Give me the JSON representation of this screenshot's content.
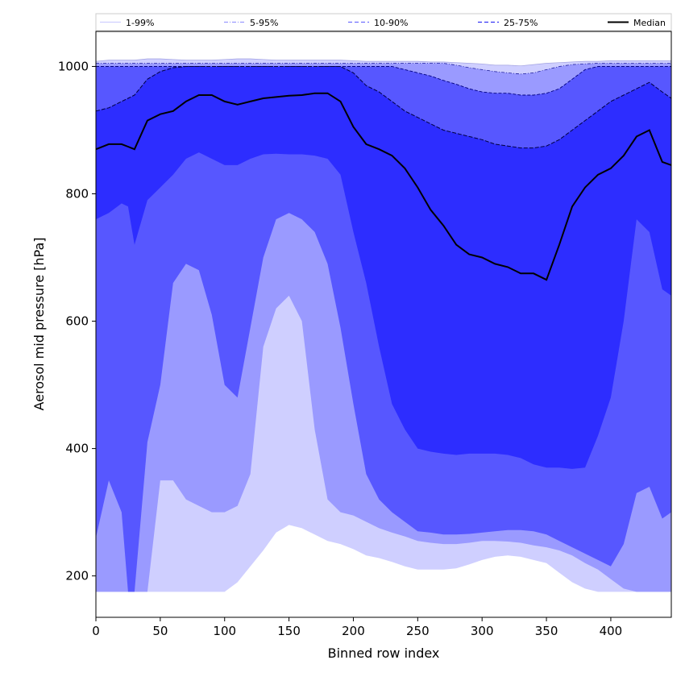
{
  "chart_data": {
    "type": "area",
    "title": "",
    "xlabel": "Binned row index",
    "ylabel": "Aerosol mid pressure [hPa]",
    "xlim": [
      0,
      447
    ],
    "ylim": [
      135,
      1055
    ],
    "xticks": [
      "0",
      "50",
      "100",
      "150",
      "200",
      "250",
      "300",
      "350",
      "400"
    ],
    "xtick_values": [
      0,
      50,
      100,
      150,
      200,
      250,
      300,
      350,
      400
    ],
    "yticks": [
      "200",
      "400",
      "600",
      "800",
      "1000"
    ],
    "ytick_values": [
      200,
      400,
      600,
      800,
      1000
    ],
    "grid": false,
    "legend_position": "top",
    "legend": [
      {
        "label": "1-99%",
        "color": "#cfcfff",
        "dash": "solid"
      },
      {
        "label": "5-95%",
        "color": "#9a9aff",
        "dash": "dashdot"
      },
      {
        "label": "10-90%",
        "color": "#6f6fff",
        "dash": "dashed"
      },
      {
        "label": "25-75%",
        "color": "#3434f5",
        "dash": "dashed"
      },
      {
        "label": "Median",
        "color": "#000000",
        "dash": "solid"
      }
    ],
    "x": [
      0,
      10,
      20,
      25,
      30,
      40,
      50,
      60,
      70,
      80,
      90,
      100,
      110,
      120,
      130,
      140,
      150,
      160,
      170,
      180,
      190,
      200,
      210,
      220,
      230,
      240,
      250,
      260,
      270,
      280,
      290,
      300,
      310,
      320,
      330,
      340,
      350,
      360,
      370,
      380,
      390,
      400,
      410,
      420,
      430,
      440,
      447
    ],
    "series": [
      {
        "name": "p1",
        "values": [
          175,
          175,
          175,
          175,
          175,
          175,
          175,
          175,
          175,
          175,
          175,
          175,
          190,
          215,
          240,
          268,
          280,
          275,
          265,
          255,
          250,
          242,
          232,
          228,
          222,
          215,
          210,
          210,
          210,
          212,
          218,
          225,
          230,
          232,
          230,
          225,
          220,
          205,
          190,
          180,
          175,
          175,
          175,
          175,
          175,
          175,
          175
        ]
      },
      {
        "name": "p5",
        "values": [
          175,
          175,
          175,
          175,
          175,
          175,
          350,
          350,
          320,
          310,
          300,
          300,
          310,
          360,
          560,
          620,
          640,
          600,
          430,
          320,
          300,
          295,
          285,
          275,
          268,
          262,
          255,
          252,
          250,
          250,
          252,
          255,
          255,
          254,
          252,
          248,
          245,
          240,
          232,
          220,
          210,
          195,
          180,
          175,
          175,
          175,
          175
        ]
      },
      {
        "name": "p10",
        "values": [
          260,
          350,
          300,
          175,
          175,
          410,
          500,
          660,
          690,
          680,
          610,
          500,
          480,
          590,
          700,
          760,
          770,
          760,
          740,
          690,
          590,
          470,
          360,
          320,
          300,
          285,
          270,
          268,
          265,
          265,
          266,
          268,
          270,
          272,
          272,
          270,
          265,
          255,
          245,
          235,
          225,
          215,
          250,
          330,
          340,
          290,
          300
        ]
      },
      {
        "name": "p25",
        "values": [
          760,
          770,
          785,
          780,
          720,
          790,
          810,
          830,
          855,
          865,
          855,
          845,
          845,
          855,
          862,
          863,
          862,
          862,
          860,
          855,
          830,
          740,
          660,
          560,
          470,
          430,
          400,
          395,
          392,
          390,
          392,
          392,
          392,
          390,
          385,
          375,
          370,
          370,
          368,
          370,
          420,
          480,
          600,
          760,
          740,
          650,
          640
        ]
      },
      {
        "name": "median",
        "values": [
          870,
          878,
          878,
          874,
          870,
          915,
          925,
          930,
          945,
          955,
          955,
          945,
          940,
          945,
          950,
          952,
          954,
          955,
          958,
          958,
          945,
          905,
          878,
          870,
          860,
          840,
          810,
          775,
          750,
          720,
          705,
          700,
          690,
          685,
          675,
          675,
          665,
          720,
          780,
          810,
          830,
          840,
          860,
          890,
          900,
          850,
          845
        ]
      },
      {
        "name": "p75",
        "values": [
          930,
          935,
          945,
          950,
          955,
          980,
          992,
          998,
          1000,
          1000,
          1000,
          1000,
          1000,
          1000,
          1000,
          1000,
          1000,
          1000,
          1000,
          1000,
          1000,
          990,
          970,
          960,
          945,
          930,
          920,
          910,
          900,
          895,
          890,
          885,
          878,
          875,
          872,
          872,
          875,
          885,
          900,
          915,
          930,
          945,
          955,
          965,
          975,
          960,
          950
        ]
      },
      {
        "name": "p90",
        "values": [
          1000,
          1000,
          1000,
          1000,
          1000,
          1000,
          1000,
          1000,
          1000,
          1000,
          1000,
          1000,
          1000,
          1000,
          1000,
          1000,
          1000,
          1000,
          1000,
          1000,
          1000,
          1000,
          1000,
          1000,
          1000,
          995,
          990,
          985,
          978,
          972,
          965,
          960,
          958,
          958,
          955,
          955,
          958,
          965,
          980,
          995,
          1000,
          1000,
          1000,
          1000,
          1000,
          1000,
          1000
        ]
      },
      {
        "name": "p95",
        "values": [
          1005,
          1005,
          1005,
          1005,
          1005,
          1005,
          1005,
          1005,
          1005,
          1005,
          1005,
          1005,
          1005,
          1005,
          1005,
          1005,
          1005,
          1005,
          1005,
          1005,
          1005,
          1005,
          1005,
          1005,
          1005,
          1005,
          1005,
          1005,
          1005,
          1002,
          998,
          995,
          992,
          990,
          988,
          990,
          995,
          1000,
          1003,
          1004,
          1005,
          1005,
          1005,
          1005,
          1005,
          1005,
          1005
        ]
      },
      {
        "name": "p99",
        "values": [
          1008,
          1010,
          1010,
          1010,
          1010,
          1012,
          1012,
          1011,
          1010,
          1010,
          1010,
          1011,
          1012,
          1012,
          1011,
          1010,
          1010,
          1010,
          1010,
          1010,
          1010,
          1009,
          1008,
          1008,
          1008,
          1008,
          1008,
          1007,
          1007,
          1006,
          1005,
          1004,
          1002,
          1002,
          1001,
          1003,
          1005,
          1006,
          1007,
          1008,
          1008,
          1009,
          1009,
          1009,
          1009,
          1009,
          1009
        ]
      }
    ],
    "bands": [
      {
        "lower": "p1",
        "upper": "p99",
        "color": "#cfcfff"
      },
      {
        "lower": "p5",
        "upper": "p95",
        "color": "#9a9aff"
      },
      {
        "lower": "p10",
        "upper": "p90",
        "color": "#5757ff"
      },
      {
        "lower": "p25",
        "upper": "p75",
        "color": "#2d2dff"
      }
    ]
  }
}
